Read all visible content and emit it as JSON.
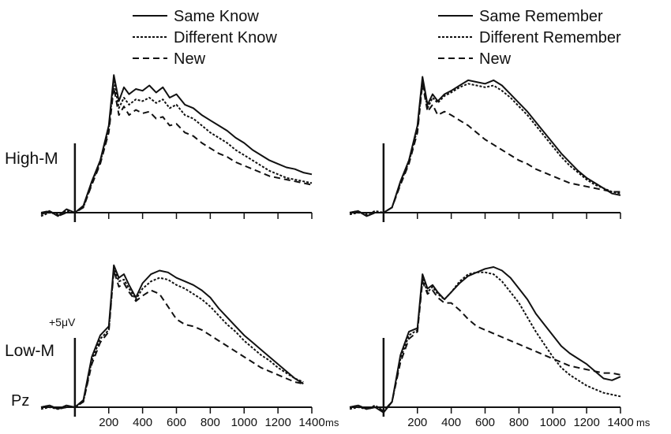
{
  "figure": {
    "row_labels": [
      "High-M",
      "Low-M"
    ],
    "electrode_label": "Pz",
    "scale_label": "+5μV",
    "x_unit": "ms",
    "line_color": "#111111"
  },
  "legends": [
    {
      "entries": [
        "Same Know",
        "Different Know",
        "New"
      ]
    },
    {
      "entries": [
        "Same Remember",
        "Different Remember",
        "New"
      ]
    }
  ],
  "chart_data": [
    {
      "type": "line",
      "row": "High-M",
      "legend": "left",
      "x_ticks": [
        200,
        400,
        600,
        800,
        1000,
        1200,
        1400
      ],
      "x_tick_labels": [
        "200",
        "400",
        "600",
        "800",
        "1000",
        "1200",
        "1400"
      ],
      "xlim": [
        -200,
        1400
      ],
      "ylim": [
        -0.5,
        8.5
      ],
      "series": [
        {
          "name": "Same Know",
          "style": "solid",
          "x": [
            -200,
            -150,
            -100,
            -50,
            0,
            50,
            100,
            150,
            200,
            230,
            260,
            290,
            320,
            360,
            400,
            440,
            480,
            520,
            560,
            600,
            650,
            700,
            750,
            800,
            850,
            900,
            950,
            1000,
            1050,
            1100,
            1150,
            1200,
            1250,
            1300,
            1350,
            1400
          ],
          "y": [
            -0.1,
            0.1,
            -0.2,
            0.2,
            0,
            0.4,
            1.8,
            3.0,
            5.0,
            7.9,
            6.4,
            7.2,
            6.8,
            7.1,
            7.0,
            7.3,
            6.9,
            7.2,
            6.6,
            6.8,
            6.2,
            6.0,
            5.6,
            5.3,
            5.0,
            4.7,
            4.3,
            4.0,
            3.6,
            3.3,
            3.0,
            2.8,
            2.6,
            2.5,
            2.3,
            2.2
          ]
        },
        {
          "name": "Different Know",
          "style": "dotted",
          "x": [
            -200,
            -150,
            -100,
            -50,
            0,
            50,
            100,
            150,
            200,
            230,
            260,
            290,
            320,
            360,
            400,
            440,
            480,
            520,
            560,
            600,
            650,
            700,
            750,
            800,
            850,
            900,
            950,
            1000,
            1050,
            1100,
            1150,
            1200,
            1250,
            1300,
            1350,
            1400
          ],
          "y": [
            -0.2,
            0,
            -0.1,
            0.1,
            0,
            0.3,
            1.7,
            2.9,
            4.8,
            7.6,
            6.0,
            6.6,
            6.2,
            6.5,
            6.4,
            6.6,
            6.3,
            6.5,
            6.0,
            6.2,
            5.6,
            5.4,
            5.0,
            4.6,
            4.3,
            4.0,
            3.6,
            3.3,
            3.0,
            2.7,
            2.4,
            2.2,
            2.0,
            1.9,
            1.8,
            1.7
          ]
        },
        {
          "name": "New",
          "style": "dashed",
          "x": [
            -200,
            -150,
            -100,
            -50,
            0,
            50,
            100,
            150,
            200,
            230,
            260,
            290,
            320,
            360,
            400,
            440,
            480,
            520,
            560,
            600,
            650,
            700,
            750,
            800,
            850,
            900,
            950,
            1000,
            1050,
            1100,
            1150,
            1200,
            1250,
            1300,
            1350,
            1400
          ],
          "y": [
            0,
            0.1,
            -0.2,
            0,
            0,
            0.3,
            1.6,
            2.8,
            4.6,
            7.2,
            5.6,
            6.1,
            5.6,
            5.9,
            5.7,
            5.8,
            5.4,
            5.5,
            5.0,
            5.1,
            4.6,
            4.4,
            4.0,
            3.7,
            3.4,
            3.2,
            2.9,
            2.7,
            2.5,
            2.3,
            2.1,
            2.0,
            1.9,
            1.8,
            1.7,
            1.6
          ]
        }
      ]
    },
    {
      "type": "line",
      "row": "High-M",
      "legend": "right",
      "x_ticks": [
        200,
        400,
        600,
        800,
        1000,
        1200,
        1400
      ],
      "x_tick_labels": [
        "200",
        "400",
        "600",
        "800",
        "1000",
        "1200",
        "1400"
      ],
      "xlim": [
        -200,
        1400
      ],
      "ylim": [
        -0.5,
        8.5
      ],
      "series": [
        {
          "name": "Same Remember",
          "style": "solid",
          "x": [
            -200,
            -150,
            -100,
            -50,
            0,
            50,
            100,
            150,
            200,
            230,
            260,
            290,
            320,
            360,
            400,
            450,
            500,
            550,
            600,
            650,
            700,
            750,
            800,
            850,
            900,
            950,
            1000,
            1050,
            1100,
            1150,
            1200,
            1250,
            1300,
            1350,
            1400
          ],
          "y": [
            0,
            0.1,
            -0.2,
            0,
            0,
            0.3,
            1.8,
            3.0,
            5.0,
            7.8,
            6.2,
            6.8,
            6.4,
            6.8,
            7.0,
            7.3,
            7.6,
            7.5,
            7.4,
            7.6,
            7.3,
            6.8,
            6.3,
            5.8,
            5.2,
            4.6,
            4.0,
            3.4,
            2.9,
            2.4,
            2.0,
            1.7,
            1.4,
            1.1,
            1.0
          ]
        },
        {
          "name": "Different Remember",
          "style": "dotted",
          "x": [
            -200,
            -150,
            -100,
            -50,
            0,
            50,
            100,
            150,
            200,
            230,
            260,
            290,
            320,
            360,
            400,
            450,
            500,
            550,
            600,
            650,
            700,
            750,
            800,
            850,
            900,
            950,
            1000,
            1050,
            1100,
            1150,
            1200,
            1250,
            1300,
            1350,
            1400
          ],
          "y": [
            -0.1,
            0,
            -0.1,
            0.1,
            0,
            0.3,
            1.7,
            2.9,
            4.8,
            7.6,
            6.0,
            6.6,
            6.3,
            6.7,
            6.9,
            7.2,
            7.4,
            7.3,
            7.2,
            7.3,
            7.0,
            6.6,
            6.1,
            5.6,
            5.0,
            4.4,
            3.8,
            3.2,
            2.7,
            2.3,
            1.9,
            1.6,
            1.4,
            1.2,
            1.1
          ]
        },
        {
          "name": "New",
          "style": "dashed",
          "x": [
            -200,
            -150,
            -100,
            -50,
            0,
            50,
            100,
            150,
            200,
            230,
            260,
            290,
            320,
            360,
            400,
            450,
            500,
            550,
            600,
            650,
            700,
            750,
            800,
            850,
            900,
            950,
            1000,
            1050,
            1100,
            1150,
            1200,
            1250,
            1300,
            1350,
            1400
          ],
          "y": [
            0,
            0.1,
            -0.2,
            0,
            0,
            0.3,
            1.6,
            2.8,
            4.6,
            7.4,
            5.8,
            6.2,
            5.6,
            5.8,
            5.6,
            5.3,
            5.0,
            4.6,
            4.2,
            3.9,
            3.6,
            3.3,
            3.0,
            2.8,
            2.5,
            2.3,
            2.1,
            1.9,
            1.7,
            1.6,
            1.5,
            1.4,
            1.3,
            1.2,
            1.2
          ]
        }
      ]
    },
    {
      "type": "line",
      "row": "Low-M",
      "legend": "none",
      "x_ticks": [
        200,
        400,
        600,
        800,
        1000,
        1200,
        1400
      ],
      "x_tick_labels": [
        "200",
        "400",
        "600",
        "800",
        "1000",
        "1200",
        "1400"
      ],
      "xlim": [
        -200,
        1400
      ],
      "ylim": [
        -0.5,
        8.5
      ],
      "series": [
        {
          "name": "Same Know",
          "style": "solid",
          "x": [
            -200,
            -150,
            -100,
            -50,
            0,
            50,
            100,
            150,
            200,
            230,
            260,
            290,
            320,
            360,
            400,
            450,
            500,
            550,
            600,
            650,
            700,
            750,
            800,
            850,
            900,
            950,
            1000,
            1050,
            1100,
            1150,
            1200,
            1250,
            1300,
            1350
          ],
          "y": [
            0,
            0.1,
            -0.1,
            0.1,
            0,
            0.4,
            2.8,
            4.0,
            4.5,
            7.9,
            7.2,
            7.4,
            6.8,
            6.1,
            6.9,
            7.4,
            7.6,
            7.5,
            7.2,
            7.0,
            6.8,
            6.5,
            6.1,
            5.5,
            5.0,
            4.5,
            4.0,
            3.6,
            3.2,
            2.8,
            2.4,
            2.0,
            1.6,
            1.3
          ]
        },
        {
          "name": "Different Know",
          "style": "dotted",
          "x": [
            -200,
            -150,
            -100,
            -50,
            0,
            50,
            100,
            150,
            200,
            230,
            260,
            290,
            320,
            360,
            400,
            450,
            500,
            550,
            600,
            650,
            700,
            750,
            800,
            850,
            900,
            950,
            1000,
            1050,
            1100,
            1150,
            1200,
            1250,
            1300,
            1350
          ],
          "y": [
            -0.1,
            0,
            -0.1,
            0,
            0,
            0.3,
            2.6,
            3.8,
            4.3,
            7.7,
            7.0,
            7.1,
            6.6,
            6.0,
            6.6,
            7.0,
            7.2,
            7.1,
            6.8,
            6.6,
            6.3,
            6.0,
            5.6,
            5.1,
            4.6,
            4.2,
            3.7,
            3.3,
            2.9,
            2.6,
            2.2,
            1.9,
            1.6,
            1.4
          ]
        },
        {
          "name": "New",
          "style": "dashed",
          "x": [
            -200,
            -150,
            -100,
            -50,
            0,
            50,
            100,
            150,
            200,
            230,
            260,
            290,
            320,
            360,
            400,
            450,
            500,
            550,
            600,
            650,
            700,
            750,
            800,
            850,
            900,
            950,
            1000,
            1050,
            1100,
            1150,
            1200,
            1250,
            1300,
            1350
          ],
          "y": [
            0,
            0.1,
            -0.1,
            0,
            0,
            0.3,
            2.4,
            3.6,
            4.2,
            7.6,
            6.7,
            6.9,
            6.4,
            5.9,
            6.2,
            6.5,
            6.3,
            5.6,
            4.9,
            4.6,
            4.5,
            4.3,
            4.0,
            3.7,
            3.4,
            3.1,
            2.8,
            2.5,
            2.2,
            2.0,
            1.8,
            1.6,
            1.4,
            1.3
          ]
        }
      ]
    },
    {
      "type": "line",
      "row": "Low-M",
      "legend": "none",
      "x_ticks": [
        200,
        400,
        600,
        800,
        1000,
        1200,
        1400
      ],
      "x_tick_labels": [
        "200",
        "400",
        "600",
        "800",
        "1000",
        "1200",
        "1400"
      ],
      "xlim": [
        -200,
        1400
      ],
      "ylim": [
        -0.5,
        8.5
      ],
      "series": [
        {
          "name": "Same Remember",
          "style": "solid",
          "x": [
            -200,
            -150,
            -100,
            -50,
            0,
            50,
            100,
            150,
            200,
            230,
            260,
            290,
            320,
            360,
            400,
            450,
            500,
            550,
            600,
            650,
            700,
            750,
            800,
            850,
            900,
            950,
            1000,
            1050,
            1100,
            1150,
            1200,
            1250,
            1300,
            1350,
            1400
          ],
          "y": [
            0,
            0.1,
            -0.1,
            0,
            -0.3,
            0.3,
            2.9,
            4.2,
            4.4,
            7.4,
            6.6,
            6.8,
            6.4,
            6.0,
            6.4,
            6.9,
            7.3,
            7.5,
            7.7,
            7.8,
            7.6,
            7.2,
            6.6,
            6.0,
            5.2,
            4.6,
            4.0,
            3.4,
            3.0,
            2.7,
            2.4,
            2.0,
            1.6,
            1.5,
            1.7
          ]
        },
        {
          "name": "Different Remember",
          "style": "dotted",
          "x": [
            -200,
            -150,
            -100,
            -50,
            0,
            50,
            100,
            150,
            200,
            230,
            260,
            290,
            320,
            360,
            400,
            450,
            500,
            550,
            600,
            650,
            700,
            750,
            800,
            850,
            900,
            950,
            1000,
            1050,
            1100,
            1150,
            1200,
            1250,
            1300,
            1350,
            1400
          ],
          "y": [
            -0.1,
            0,
            -0.1,
            0.1,
            -0.2,
            0.3,
            2.7,
            4.0,
            4.3,
            7.2,
            6.4,
            6.7,
            6.3,
            6.0,
            6.4,
            7.0,
            7.4,
            7.5,
            7.5,
            7.4,
            7.0,
            6.4,
            5.8,
            5.0,
            4.2,
            3.5,
            2.8,
            2.2,
            1.8,
            1.5,
            1.2,
            1.0,
            0.8,
            0.7,
            0.6
          ]
        },
        {
          "name": "New",
          "style": "dashed",
          "x": [
            -200,
            -150,
            -100,
            -50,
            0,
            50,
            100,
            150,
            200,
            230,
            260,
            290,
            320,
            360,
            400,
            450,
            500,
            550,
            600,
            650,
            700,
            750,
            800,
            850,
            900,
            950,
            1000,
            1050,
            1100,
            1150,
            1200,
            1250,
            1300,
            1350,
            1400
          ],
          "y": [
            0,
            0.1,
            -0.1,
            0,
            -0.2,
            0.3,
            2.5,
            3.8,
            4.2,
            7.0,
            6.3,
            6.5,
            6.1,
            5.8,
            5.8,
            5.4,
            4.9,
            4.5,
            4.3,
            4.1,
            3.9,
            3.7,
            3.5,
            3.3,
            3.1,
            2.9,
            2.7,
            2.5,
            2.3,
            2.2,
            2.1,
            2.0,
            1.9,
            1.9,
            1.8
          ]
        }
      ]
    }
  ]
}
